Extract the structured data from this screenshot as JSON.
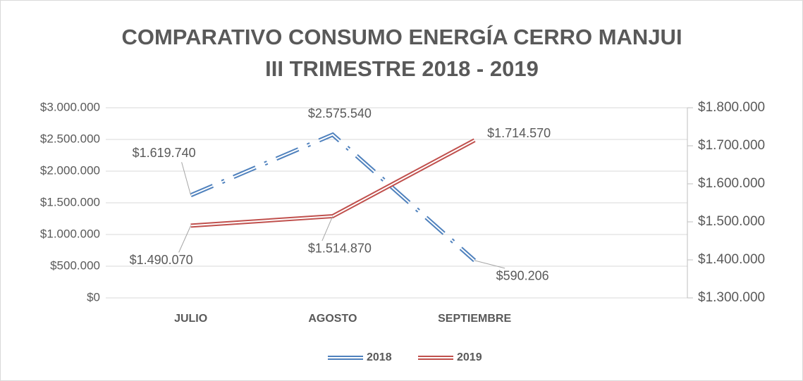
{
  "chart_data": {
    "type": "line",
    "title": [
      "COMPARATIVO CONSUMO ENERGÍA CERRO MANJUI",
      "III TRIMESTRE 2018 - 2019"
    ],
    "categories": [
      "JULIO",
      "AGOSTO",
      "SEPTIEMBRE",
      null
    ],
    "series": [
      {
        "name": "2018",
        "color": "#4f81bd",
        "values": [
          1619740,
          2575540,
          590206,
          null
        ],
        "value_labels": [
          "$1.619.740",
          "$2.575.540",
          "$590.206",
          null
        ]
      },
      {
        "name": "2019",
        "color": "#c0504d",
        "axis": "y2",
        "values": [
          1490070,
          1514870,
          1714570,
          null
        ],
        "value_labels": [
          "$1.490.070",
          "$1.514.870",
          "$1.714.570",
          null
        ]
      }
    ],
    "ylim": [
      0,
      3000000
    ],
    "yticks": [
      {
        "value": 0,
        "label": "$0"
      },
      {
        "value": 500000,
        "label": "$500.000"
      },
      {
        "value": 1000000,
        "label": "$1.000.000"
      },
      {
        "value": 1500000,
        "label": "$1.500.000"
      },
      {
        "value": 2000000,
        "label": "$2.000.000"
      },
      {
        "value": 2500000,
        "label": "$2.500.000"
      },
      {
        "value": 3000000,
        "label": "$3.000.000"
      }
    ],
    "y2lim": [
      1300000,
      1800000
    ],
    "y2ticks": [
      {
        "value": 1300000,
        "label": "$1.300.000"
      },
      {
        "value": 1400000,
        "label": "$1.400.000"
      },
      {
        "value": 1500000,
        "label": "$1.500.000"
      },
      {
        "value": 1600000,
        "label": "$1.600.000"
      },
      {
        "value": 1700000,
        "label": "$1.700.000"
      },
      {
        "value": 1800000,
        "label": "$1.800.000"
      }
    ],
    "grid": true,
    "legend": "bottom"
  }
}
